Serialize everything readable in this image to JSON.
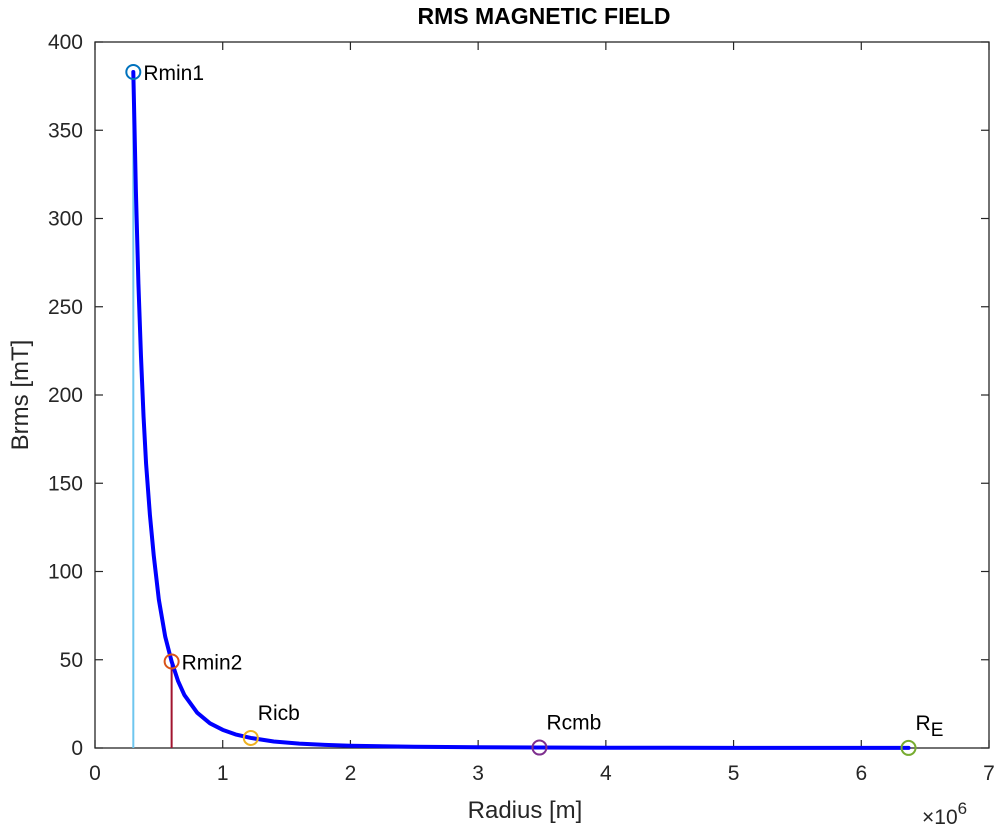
{
  "chart_data": {
    "type": "line",
    "title": "RMS MAGNETIC FIELD",
    "xlabel": "Radius [m]",
    "ylabel": "Brms [mT]",
    "x_exponent_label": {
      "base": "×10",
      "power": "6"
    },
    "xlim": [
      0,
      7
    ],
    "ylim": [
      0,
      400
    ],
    "xticks": [
      0,
      1,
      2,
      3,
      4,
      5,
      6,
      7
    ],
    "yticks": [
      0,
      50,
      100,
      150,
      200,
      250,
      300,
      350,
      400
    ],
    "grid": false,
    "box": true,
    "series": [
      {
        "color": "#0000ff",
        "formula_note": "",
        "x": [
          0.3,
          0.32,
          0.34,
          0.36,
          0.38,
          0.4,
          0.43,
          0.46,
          0.5,
          0.55,
          0.6,
          0.65,
          0.7,
          0.8,
          0.9,
          1.0,
          1.1,
          1.22,
          1.4,
          1.6,
          1.8,
          2.0,
          2.5,
          3.0,
          3.48,
          4.0,
          4.5,
          5.0,
          5.5,
          6.0,
          6.37
        ],
        "y": [
          383,
          316,
          263,
          222,
          188,
          161,
          132,
          109,
          84,
          63,
          49,
          38,
          30,
          20,
          14,
          10.3,
          7.7,
          5.7,
          3.7,
          2.5,
          1.8,
          1.3,
          0.68,
          0.39,
          0.25,
          0.16,
          0.11,
          0.08,
          0.06,
          0.045,
          0.038
        ]
      }
    ],
    "vertical_lines": [
      {
        "x": 0.3,
        "y_top": 383,
        "color": "#6ec6ef"
      },
      {
        "x": 0.6,
        "y_top": 49,
        "color": "#a2142f"
      }
    ],
    "markers": [
      {
        "x": 0.3,
        "y": 383,
        "label": "Rmin1",
        "color": "#0072bd",
        "label_pos": "right"
      },
      {
        "x": 0.6,
        "y": 49,
        "label": "Rmin2",
        "color": "#d95319",
        "label_pos": "right"
      },
      {
        "x": 1.22,
        "y": 5.7,
        "label": "Ricb",
        "color": "#edb120",
        "label_pos": "above"
      },
      {
        "x": 3.48,
        "y": 0.25,
        "label": "Rcmb",
        "color": "#7e2f8e",
        "label_pos": "above"
      },
      {
        "x": 6.37,
        "y": 0.038,
        "label": "R",
        "label_sub": "E",
        "color": "#77ac30",
        "label_pos": "above"
      }
    ]
  }
}
